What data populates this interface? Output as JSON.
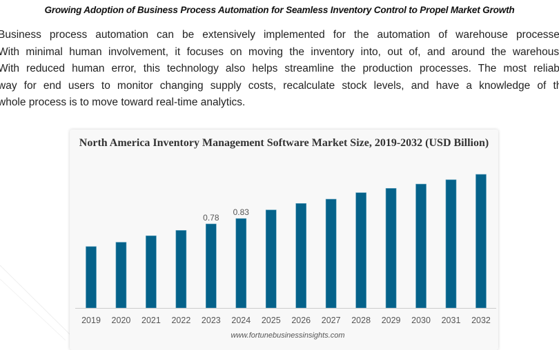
{
  "article": {
    "heading": "Growing Adoption of Business Process Automation for Seamless Inventory Control to Propel Market Growth",
    "paragraph_lines": [
      "Business process automation can be extensively implemented for the automation of warehouse processes.",
      "With minimal human involvement, it focuses on moving the inventory into, out of, and around the warehouse.",
      "With reduced human error, this technology also helps streamline the production processes. The most reliable",
      "way for end users to monitor changing supply costs, recalculate stock levels, and have a knowledge of the",
      "whole process is to move toward real-time analytics."
    ]
  },
  "chart_data": {
    "type": "bar",
    "title": "North America Inventory Management Software Market Size, 2019-2032 (USD Billion)",
    "categories": [
      "2019",
      "2020",
      "2021",
      "2022",
      "2023",
      "2024",
      "2025",
      "2026",
      "2027",
      "2028",
      "2029",
      "2030",
      "2031",
      "2032"
    ],
    "values": [
      0.57,
      0.61,
      0.67,
      0.72,
      0.78,
      0.83,
      0.91,
      0.97,
      1.01,
      1.07,
      1.11,
      1.15,
      1.19,
      1.24
    ],
    "data_labels": {
      "2023": "0.78",
      "2024": "0.83"
    },
    "xlabel": "",
    "ylabel": "",
    "ylim": [
      0,
      1.4
    ],
    "grid": false,
    "legend": "none",
    "source": "www.fortunebusinessinsights.com",
    "colors": {
      "bar": "#05628a",
      "bar_edge": "#5aa0bd",
      "axis": "#cccccc",
      "label": "#555555"
    }
  }
}
